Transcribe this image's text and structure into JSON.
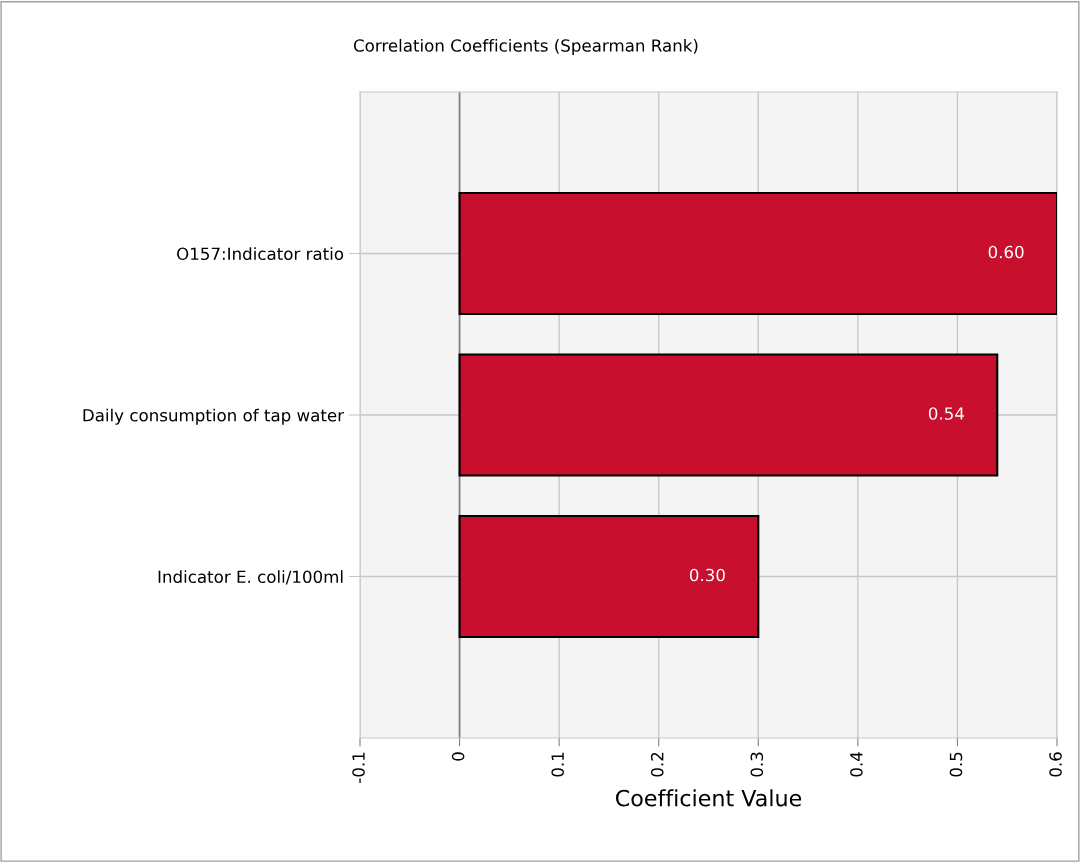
{
  "chart_data": {
    "type": "bar",
    "orientation": "horizontal",
    "title": "Correlation Coefficients (Spearman Rank)",
    "xlabel": "Coefficient Value",
    "categories": [
      "O157:Indicator ratio",
      "Daily consumption of tap water",
      "Indicator E. coli/100ml"
    ],
    "values": [
      0.6,
      0.54,
      0.3
    ],
    "value_labels": [
      "0.60",
      "0.54",
      "0.30"
    ],
    "color": "#c8102e",
    "xlim": [
      -0.1,
      0.6
    ],
    "xticks": [
      -0.1,
      0,
      0.1,
      0.2,
      0.3,
      0.4,
      0.5,
      0.6
    ],
    "grid": true,
    "legend": false
  }
}
